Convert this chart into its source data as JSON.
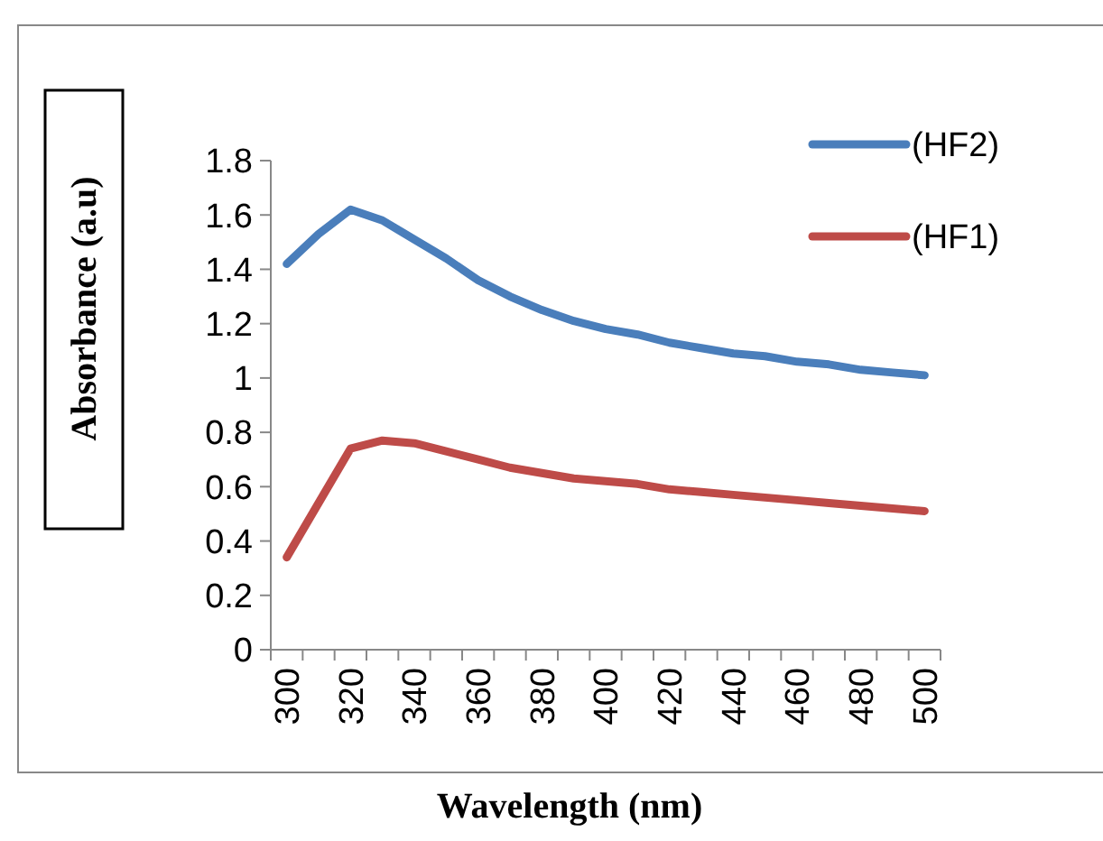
{
  "chart_data": {
    "type": "line",
    "xlabel": "Wavelength (nm)",
    "ylabel": "Absorbance (a.u)",
    "categories": [
      "300",
      null,
      "320",
      null,
      "340",
      null,
      "360",
      null,
      "380",
      null,
      "400",
      null,
      "420",
      null,
      "440",
      null,
      "460",
      null,
      "480",
      null,
      "500"
    ],
    "series": [
      {
        "name": "(HF2)",
        "color": "#4a7ebb",
        "values": [
          1.42,
          1.53,
          1.62,
          1.58,
          1.51,
          1.44,
          1.36,
          1.3,
          1.25,
          1.21,
          1.18,
          1.16,
          1.13,
          1.11,
          1.09,
          1.08,
          1.06,
          1.05,
          1.03,
          1.02,
          1.01
        ]
      },
      {
        "name": "(HF1)",
        "color": "#be4b48",
        "values": [
          0.34,
          0.54,
          0.74,
          0.77,
          0.76,
          0.73,
          0.7,
          0.67,
          0.65,
          0.63,
          0.62,
          0.61,
          0.59,
          0.58,
          0.57,
          0.56,
          0.55,
          0.54,
          0.53,
          0.52,
          0.51
        ]
      }
    ],
    "ylim": [
      0,
      1.8
    ],
    "yticks": [
      0,
      0.2,
      0.4,
      0.6,
      0.8,
      1,
      1.2,
      1.4,
      1.6,
      1.8
    ],
    "legend": "top right",
    "grid": false,
    "marker": "none",
    "line_style": "solid"
  }
}
